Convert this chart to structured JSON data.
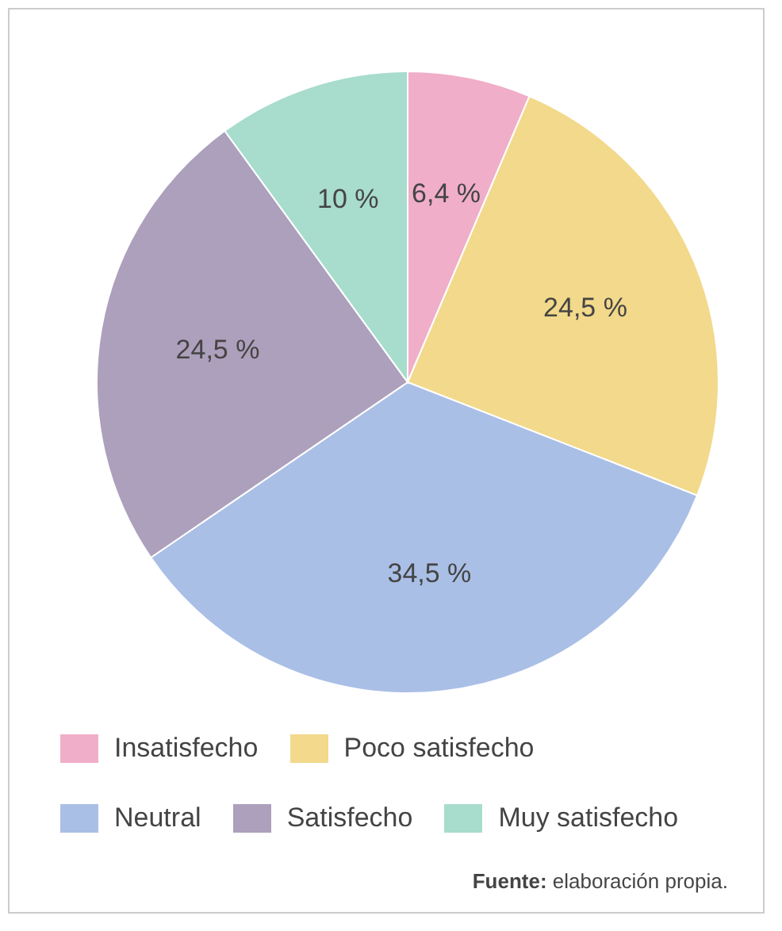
{
  "chart_data": {
    "type": "pie",
    "categories": [
      "Insatisfecho",
      "Poco satisfecho",
      "Neutral",
      "Satisfecho",
      "Muy satisfecho"
    ],
    "values": [
      6.4,
      24.5,
      34.5,
      24.5,
      10
    ],
    "value_labels": [
      "6,4 %",
      "24,5 %",
      "34,5 %",
      "24,5 %",
      "10 %"
    ],
    "colors": [
      "#f0aec8",
      "#f2d98b",
      "#aabfe6",
      "#ada0bc",
      "#a8dccc"
    ],
    "legend": "bottom",
    "annotations": [
      "Fuente: elaboración propia."
    ]
  }
}
